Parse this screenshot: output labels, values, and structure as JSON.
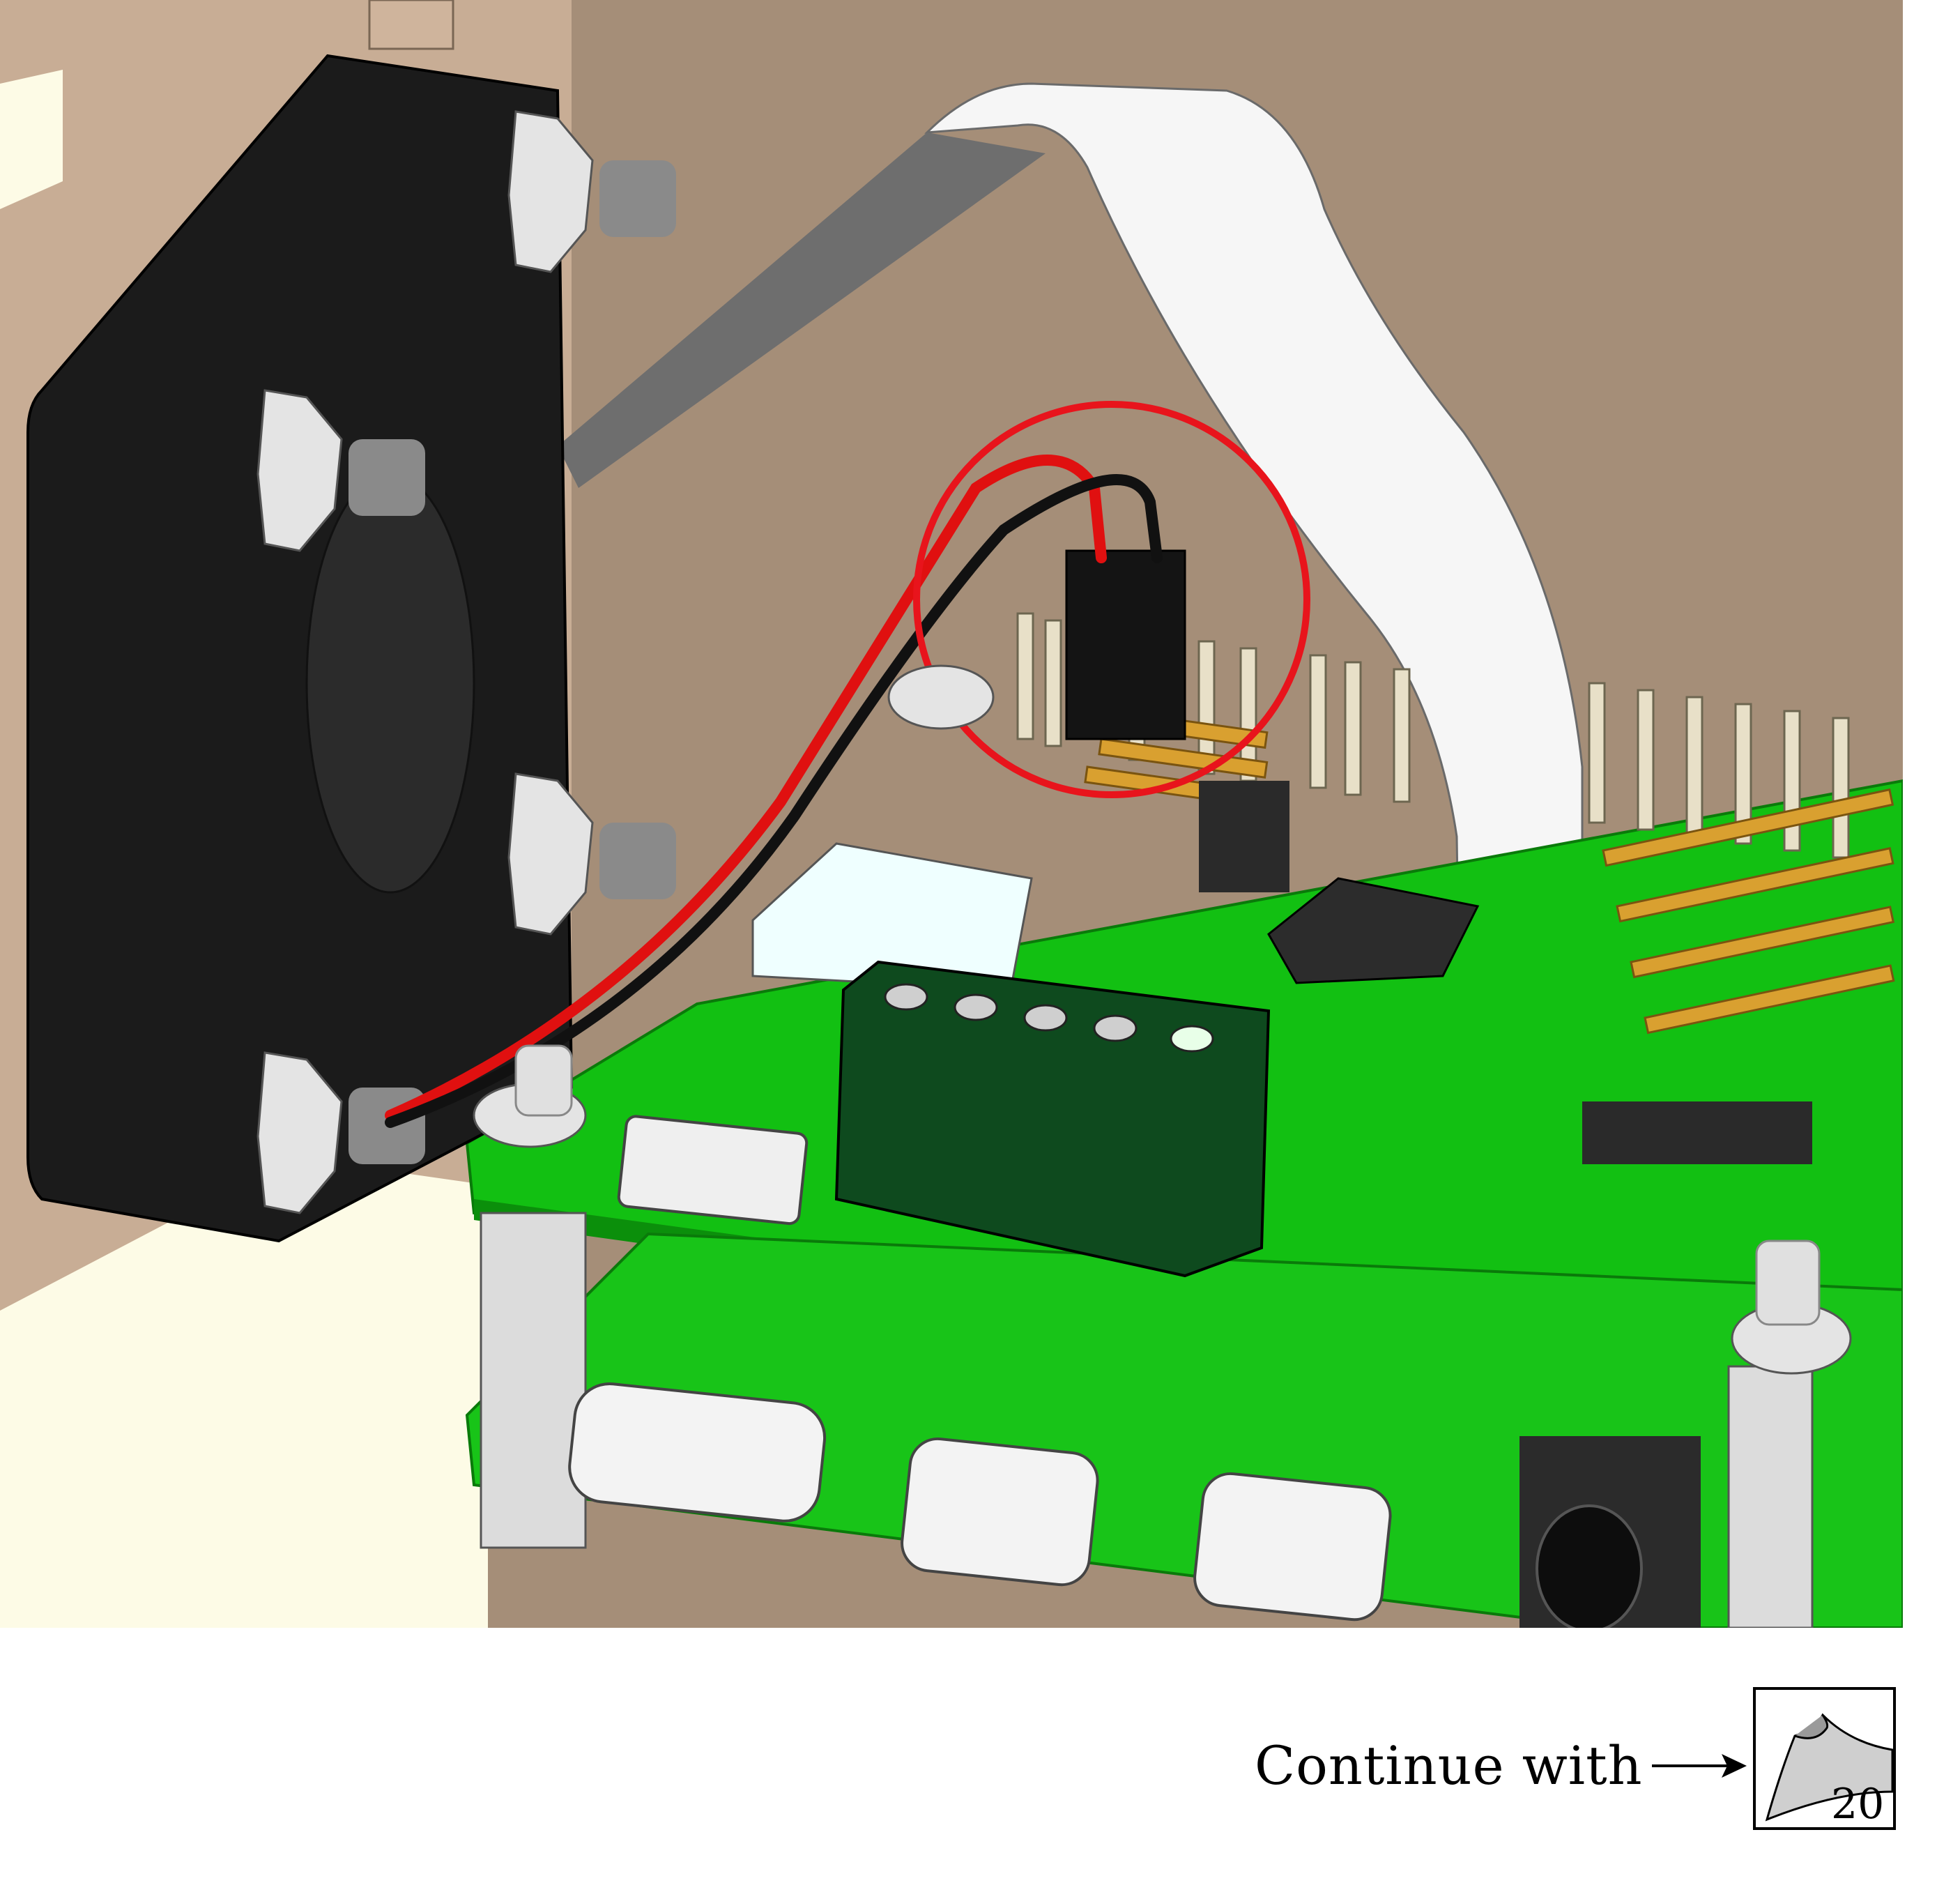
{
  "footer": {
    "continue_label": "Continue with",
    "next_page_number": "20"
  },
  "colors": {
    "background_wall": "#a58e78",
    "pcb_green": "#12c012",
    "fan_black": "#1b1b1b",
    "highlight_ring": "#e8141c",
    "wire_red": "#e01010",
    "wire_black": "#111111",
    "pin_gold": "#d9a030",
    "ribbon_cable": "#f4f4f4",
    "terminal_block": "#0e4a1e"
  },
  "icons": {
    "arrow": "right-arrow-icon",
    "next_page": "page-curl-icon"
  }
}
